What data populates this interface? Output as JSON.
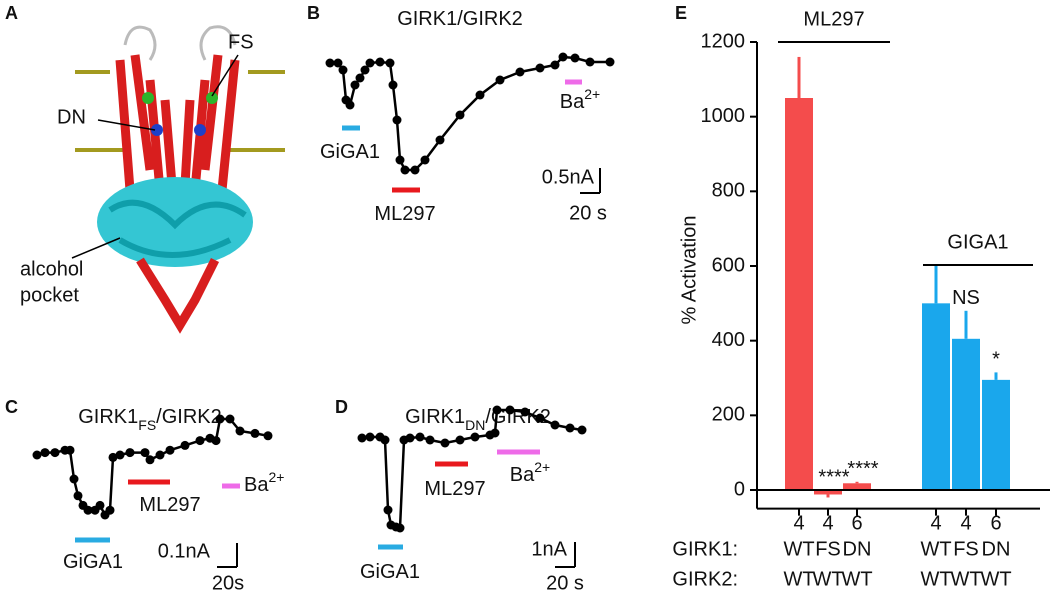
{
  "panel_A": {
    "letter": "A",
    "fs": "FS",
    "dn": "DN",
    "alcohol_pocket": [
      "alcohol",
      "pocket"
    ]
  },
  "chart_data": [
    {
      "type": "trace",
      "letter": "B",
      "title": [
        {
          "text": "GIRK1/GIRK2"
        }
      ],
      "x": [
        0,
        8,
        13,
        16,
        20,
        25,
        30,
        35,
        40,
        50,
        60,
        63,
        67,
        70,
        75,
        85,
        95,
        110,
        130,
        150,
        170,
        190,
        210,
        225,
        233,
        245,
        260,
        280
      ],
      "values": [
        0,
        0,
        -0.14,
        -0.74,
        -0.84,
        -0.44,
        -0.3,
        -0.14,
        0,
        0.02,
        0,
        -0.44,
        -1.14,
        -1.94,
        -2.14,
        -2.14,
        -1.94,
        -1.54,
        -1.04,
        -0.64,
        -0.34,
        -0.18,
        -0.1,
        -0.04,
        0.12,
        0.1,
        0.02,
        0.02
      ],
      "applications": [
        {
          "name": "GiGA1",
          "color": "#29abe2",
          "start": 12,
          "end": 30
        },
        {
          "name": "ML297",
          "color": "#e8191e",
          "start": 62,
          "end": 90
        },
        {
          "name": "Ba",
          "sup": "2+",
          "color": "#ee6be8",
          "start": 235,
          "end": 252
        }
      ],
      "scale_bar": {
        "current": 0.5,
        "current_label": "0.5nA",
        "time": 20,
        "time_label": "20 s"
      }
    },
    {
      "type": "trace",
      "letter": "C",
      "title": [
        {
          "text": "GIRK1"
        },
        {
          "text": "FS",
          "sub": true
        },
        {
          "text": "/GIRK2"
        }
      ],
      "x": [
        0,
        8,
        18,
        28,
        33,
        37,
        41,
        46,
        51,
        58,
        63,
        68,
        73,
        76,
        83,
        93,
        108,
        113,
        123,
        133,
        148,
        163,
        173,
        179,
        183,
        193,
        203,
        218,
        231
      ],
      "values": [
        0,
        0.01,
        0.01,
        0.02,
        0.02,
        -0.1,
        -0.17,
        -0.21,
        -0.23,
        -0.23,
        -0.21,
        -0.25,
        -0.23,
        -0.01,
        0,
        0.01,
        0.01,
        -0.02,
        0,
        0.02,
        0.04,
        0.06,
        0.07,
        0.06,
        0.15,
        0.15,
        0.1,
        0.09,
        0.08
      ],
      "applications": [
        {
          "name": "GiGA1",
          "color": "#29abe2",
          "start": 38,
          "end": 73
        },
        {
          "name": "ML297",
          "color": "#e8191e",
          "start": 91,
          "end": 133
        },
        {
          "name": "Ba",
          "sup": "2+",
          "color": "#ee6be8",
          "start": 185,
          "end": 203
        }
      ],
      "scale_bar": {
        "current": 0.1,
        "current_label": "0.1nA",
        "time": 20,
        "time_label": "20s"
      }
    },
    {
      "type": "trace",
      "letter": "D",
      "title": [
        {
          "text": "GIRK1"
        },
        {
          "text": "DN",
          "sub": true
        },
        {
          "text": "/GIRK2"
        }
      ],
      "x": [
        0,
        8,
        18,
        23,
        26,
        29,
        34,
        38,
        42,
        48,
        58,
        68,
        83,
        98,
        113,
        128,
        133,
        135,
        148,
        163,
        178,
        193,
        208,
        220
      ],
      "values": [
        0,
        0.04,
        0.04,
        -0.08,
        -2.88,
        -3.48,
        -3.56,
        -3.6,
        -0.08,
        0,
        0.04,
        -0.08,
        -0.2,
        -0.08,
        0.04,
        0.12,
        0.2,
        1.12,
        1.12,
        1.04,
        0.8,
        0.52,
        0.4,
        0.32
      ],
      "applications": [
        {
          "name": "GiGA1",
          "color": "#29abe2",
          "start": 16,
          "end": 41
        },
        {
          "name": "ML297",
          "color": "#e8191e",
          "start": 73,
          "end": 106
        },
        {
          "name": "Ba",
          "sup": "2+",
          "color": "#ee6be8",
          "start": 135,
          "end": 178
        }
      ],
      "scale_bar": {
        "current": 1,
        "current_label": "1nA",
        "time": 20,
        "time_label": "20 s"
      }
    },
    {
      "type": "bar",
      "letter": "E",
      "y_label": "% Activation",
      "values": [
        1050,
        -12,
        18,
        500,
        405,
        295
      ],
      "errors": [
        110,
        8,
        4,
        100,
        75,
        20
      ],
      "colors": [
        "#f44c4c",
        "#f44c4c",
        "#f44c4c",
        "#1aa7ec",
        "#1aa7ec",
        "#1aa7ec"
      ],
      "annotations": [
        null,
        "****",
        "****",
        null,
        "NS",
        "*"
      ],
      "groups": [
        "ML297",
        "GIGA1"
      ],
      "n": [
        4,
        4,
        6,
        4,
        4,
        6
      ],
      "row_labels": [
        "GIRK1:",
        "GIRK2:"
      ],
      "girk1": [
        "WT",
        "FS",
        "DN",
        "WT",
        "FS",
        "DN"
      ],
      "girk2": [
        "WT",
        "WT",
        "WT",
        "WT",
        "WT",
        "WT"
      ],
      "ylim": [
        -50,
        1200
      ],
      "yticks": [
        0,
        200,
        400,
        600,
        800,
        1000,
        1200
      ]
    }
  ]
}
